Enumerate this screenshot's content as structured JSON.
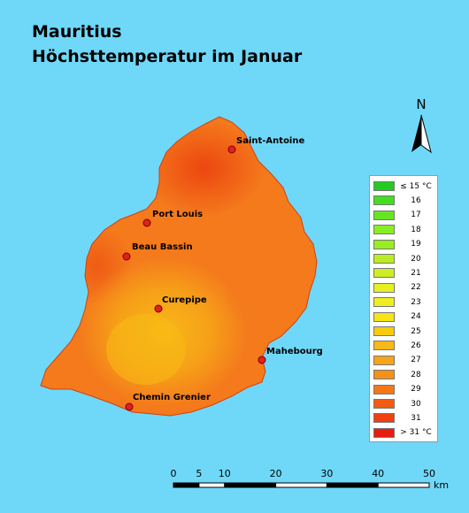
{
  "title": {
    "line1": "Mauritius",
    "line2": "Höchsttemperatur im Januar"
  },
  "north_arrow": {
    "label": "N",
    "icon": "north-arrow-icon"
  },
  "cities": [
    {
      "name": "Saint-Antoine"
    },
    {
      "name": "Port Louis"
    },
    {
      "name": "Beau Bassin"
    },
    {
      "name": "Curepipe"
    },
    {
      "name": "Mahebourg"
    },
    {
      "name": "Chemin Grenier"
    }
  ],
  "city_marker_color": "#e02020",
  "legend": {
    "items": [
      {
        "label": "≤ 15 °C",
        "color": "#22cc22"
      },
      {
        "label": "16",
        "color": "#44dd22"
      },
      {
        "label": "17",
        "color": "#66e622"
      },
      {
        "label": "18",
        "color": "#88ee22"
      },
      {
        "label": "19",
        "color": "#99ee22"
      },
      {
        "label": "20",
        "color": "#bbee22"
      },
      {
        "label": "21",
        "color": "#ccee22"
      },
      {
        "label": "22",
        "color": "#e6f022"
      },
      {
        "label": "23",
        "color": "#f0ee22"
      },
      {
        "label": "24",
        "color": "#f7e41a"
      },
      {
        "label": "25",
        "color": "#f8cc10"
      },
      {
        "label": "26",
        "color": "#f7b818"
      },
      {
        "label": "27",
        "color": "#f6a418"
      },
      {
        "label": "28",
        "color": "#f59018"
      },
      {
        "label": "29",
        "color": "#f47818"
      },
      {
        "label": "30",
        "color": "#f25c10"
      },
      {
        "label": "31",
        "color": "#ee4010"
      },
      {
        "label": "> 31 °C",
        "color": "#e81c10"
      }
    ]
  },
  "scale_bar": {
    "ticks": [
      "0",
      "5",
      "10",
      "20",
      "30",
      "40",
      "50"
    ],
    "unit": "km"
  },
  "colors": {
    "water": "#6fd8f8",
    "island_base": "#f47a1c",
    "center_warm": "#f8b018",
    "north_hot": "#ee4a10"
  }
}
